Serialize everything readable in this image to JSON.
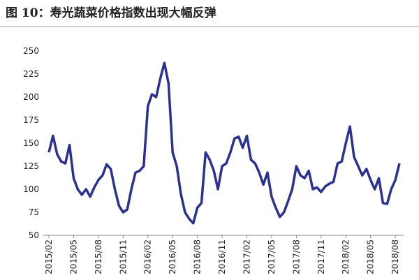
{
  "chart_data": {
    "type": "line",
    "title": "图 10：寿光蔬菜价格指数出现大幅反弹",
    "categories": [
      "2015/02",
      null,
      null,
      null,
      null,
      null,
      "2015/05",
      null,
      null,
      null,
      null,
      null,
      "2015/08",
      null,
      null,
      null,
      null,
      null,
      "2015/11",
      null,
      null,
      null,
      null,
      null,
      "2016/02",
      null,
      null,
      null,
      null,
      null,
      "2016/05",
      null,
      null,
      null,
      null,
      null,
      "2016/08",
      null,
      null,
      null,
      null,
      null,
      "2016/11",
      null,
      null,
      null,
      null,
      null,
      "2017/02",
      null,
      null,
      null,
      null,
      null,
      "2017/05",
      null,
      null,
      null,
      null,
      null,
      "2017/08",
      null,
      null,
      null,
      null,
      null,
      "2017/11",
      null,
      null,
      null,
      null,
      null,
      "2018/02",
      null,
      null,
      null,
      null,
      null,
      "2018/05",
      null,
      null,
      null,
      null,
      null,
      "2018/08",
      null
    ],
    "series": [
      {
        "color": "#2b3190",
        "values": [
          140,
          158,
          138,
          130,
          128,
          148,
          112,
          100,
          94,
          100,
          92,
          102,
          110,
          115,
          127,
          122,
          100,
          82,
          75,
          78,
          100,
          118,
          120,
          125,
          190,
          203,
          200,
          220,
          237,
          215,
          140,
          125,
          95,
          75,
          68,
          63,
          80,
          85,
          140,
          132,
          120,
          100,
          125,
          128,
          140,
          155,
          157,
          145,
          158,
          132,
          128,
          118,
          105,
          118,
          92,
          80,
          70,
          75,
          87,
          100,
          125,
          115,
          112,
          120,
          100,
          102,
          97,
          103,
          106,
          108,
          128,
          130,
          150,
          168,
          135,
          125,
          115,
          122,
          110,
          100,
          112,
          85,
          84,
          100,
          110,
          128
        ]
      }
    ],
    "ylim": [
      50,
      250
    ],
    "yticks": [
      50,
      75,
      100,
      125,
      150,
      175,
      200,
      225,
      250
    ]
  }
}
